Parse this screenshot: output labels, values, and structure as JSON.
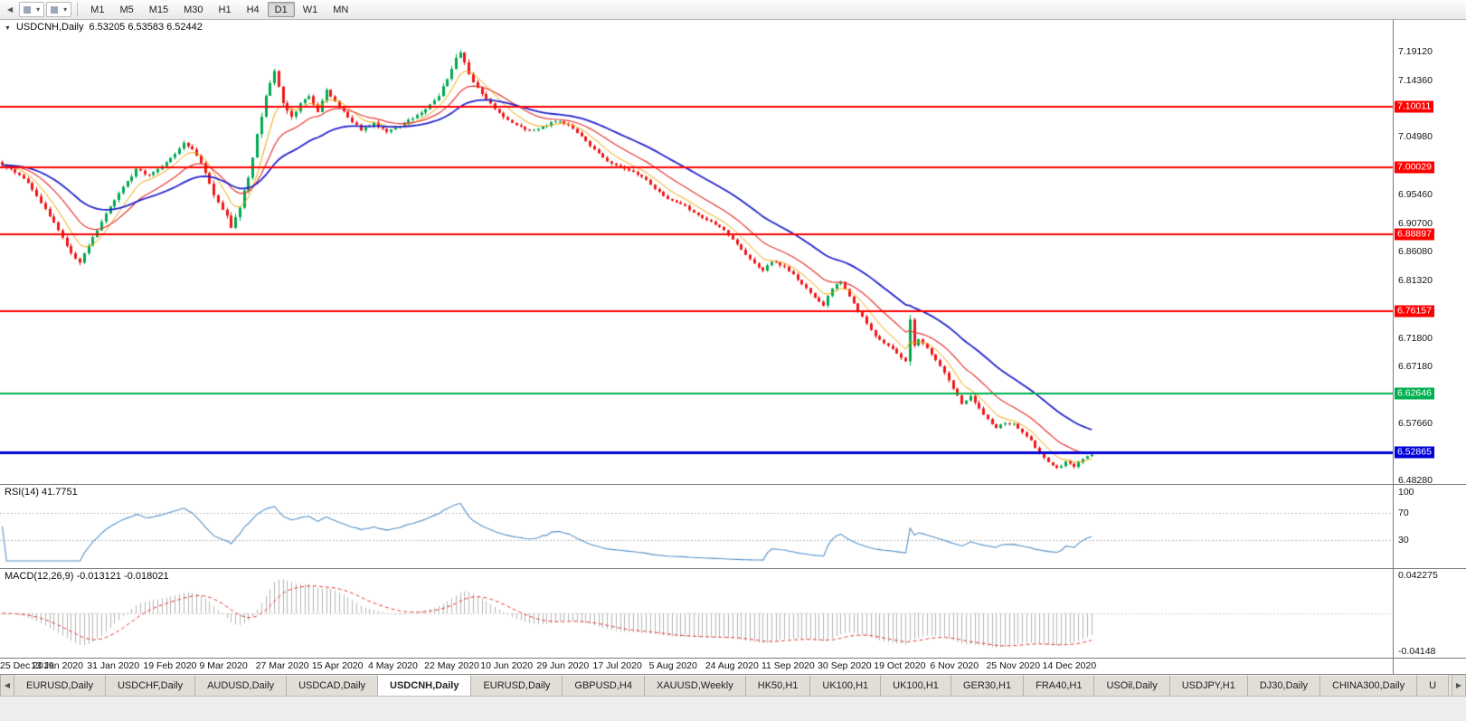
{
  "toolbar": {
    "overflow_left": "◀",
    "dropdowns": [
      "▾",
      "▾"
    ],
    "timeframes": [
      "M1",
      "M5",
      "M15",
      "M30",
      "H1",
      "H4",
      "D1",
      "W1",
      "MN"
    ],
    "active_timeframe": "D1"
  },
  "price_panel": {
    "symbol_marker": "▼",
    "symbol": "USDCNH,Daily",
    "quotes": "6.53205 6.53583 6.52442",
    "price_range": {
      "top": 7.243,
      "bottom": 6.477
    },
    "axis_labels": [
      {
        "text": "7.19120",
        "price": 7.1912
      },
      {
        "text": "7.14360",
        "price": 7.1436
      },
      {
        "text": "7.04980",
        "price": 7.0498
      },
      {
        "text": "6.95460",
        "price": 6.9546
      },
      {
        "text": "6.90700",
        "price": 6.907
      },
      {
        "text": "6.86080",
        "price": 6.8608
      },
      {
        "text": "6.81320",
        "price": 6.8132
      },
      {
        "text": "6.71800",
        "price": 6.718
      },
      {
        "text": "6.67180",
        "price": 6.6718
      },
      {
        "text": "6.57660",
        "price": 6.5766
      },
      {
        "text": "6.48280",
        "price": 6.4828
      }
    ],
    "line_labels": [
      {
        "text": "7.10011",
        "price": 7.10011,
        "color": "#ff0000"
      },
      {
        "text": "7.00029",
        "price": 7.00029,
        "color": "#ff0000"
      },
      {
        "text": "6.88897",
        "price": 6.88897,
        "color": "#ff0000"
      },
      {
        "text": "6.76157",
        "price": 6.76157,
        "color": "#ff0000"
      },
      {
        "text": "6.62646",
        "price": 6.62646,
        "color": "#00b050"
      },
      {
        "text": "6.52865",
        "price": 6.52865,
        "color": "#0000d8"
      }
    ],
    "h_lines": [
      {
        "price": 7.10011,
        "color": "#ff0000",
        "width": 2
      },
      {
        "price": 7.00029,
        "color": "#ff0000",
        "width": 2
      },
      {
        "price": 6.88897,
        "color": "#ff0000",
        "width": 2
      },
      {
        "price": 6.76157,
        "color": "#ff0000",
        "width": 2
      },
      {
        "price": 6.62646,
        "color": "#00b050",
        "width": 2
      },
      {
        "price": 6.52865,
        "color": "#0000d8",
        "width": 3
      }
    ]
  },
  "rsi_panel": {
    "label": "RSI(14) 41.7751",
    "value": 41.7751,
    "period": 14,
    "levels": [
      70,
      30
    ],
    "axis_labels": [
      {
        "text": "100",
        "value": 100
      },
      {
        "text": "70",
        "value": 70
      },
      {
        "text": "30",
        "value": 30
      }
    ],
    "line_color": "#5591c8"
  },
  "macd_panel": {
    "label": "MACD(12,26,9) -0.013121 -0.018021",
    "macd_value": -0.013121,
    "signal_value": -0.018021,
    "fast": 12,
    "slow": 26,
    "signal": 9,
    "axis_top": "0.042275",
    "axis_bottom": "-0.04148",
    "histogram_color": "#b4b4b4",
    "signal_color": "#e53935"
  },
  "date_axis": {
    "labels": [
      "25 Dec 2019",
      "13 Jan 2020",
      "31 Jan 2020",
      "19 Feb 2020",
      "9 Mar 2020",
      "27 Mar 2020",
      "15 Apr 2020",
      "4 May 2020",
      "22 May 2020",
      "10 Jun 2020",
      "29 Jun 2020",
      "17 Jul 2020",
      "5 Aug 2020",
      "24 Aug 2020",
      "11 Sep 2020",
      "30 Sep 2020",
      "19 Oct 2020",
      "6 Nov 2020",
      "25 Nov 2020",
      "14 Dec 2020"
    ],
    "candles_per_label": 13
  },
  "tabs": {
    "left_scroll": "◀",
    "right_scroll": "▶",
    "active_index": 4,
    "items": [
      "EURUSD,Daily",
      "USDCHF,Daily",
      "AUDUSD,Daily",
      "USDCAD,Daily",
      "USDCNH,Daily",
      "EURUSD,Daily",
      "GBPUSD,H4",
      "XAUUSD,Weekly",
      "HK50,H1",
      "UK100,H1",
      "UK100,H1",
      "GER30,H1",
      "FRA40,H1",
      "USOil,Daily",
      "USDJPY,H1",
      "DJ30,Daily",
      "CHINA300,Daily",
      "U"
    ]
  },
  "colors": {
    "up_candle": "#00a94f",
    "down_candle": "#f01616",
    "ma_fast": "#efa400",
    "ma_mid": "#e53935",
    "ma_slow": "#2323cc",
    "background": "#ffffff",
    "axis_text": "#111111"
  },
  "chart_data": {
    "type": "candlestick",
    "symbol": "USDCNH",
    "timeframe": "Daily",
    "title": "USDCNH,Daily",
    "x_range": [
      "25 Dec 2019",
      "14 Dec 2020"
    ],
    "y_range": [
      6.4828,
      7.1912
    ],
    "candle_count": 253,
    "last_quotes": [
      6.53205,
      6.53583,
      6.52442
    ],
    "horizontal_lines": [
      7.10011,
      7.00029,
      6.88897,
      6.76157,
      6.62646,
      6.52865
    ],
    "moving_average_periods": {
      "fast": 7,
      "mid": 16,
      "slow": 34
    },
    "indicators": {
      "rsi_14": 41.7751,
      "macd_12_26_9": [
        -0.013121,
        -0.018021
      ]
    },
    "note": "close_anchors = [candle_index, close_price, approx_daily_range_in_0.001_units]; intermediate candles interpolated between anchors",
    "close_anchors": [
      [
        0,
        7.004,
        8
      ],
      [
        3,
        6.992,
        8
      ],
      [
        6,
        6.973,
        9
      ],
      [
        9,
        6.942,
        10
      ],
      [
        12,
        6.908,
        11
      ],
      [
        15,
        6.87,
        11
      ],
      [
        17,
        6.849,
        10
      ],
      [
        18,
        6.843,
        9
      ],
      [
        20,
        6.872,
        9
      ],
      [
        23,
        6.91,
        9
      ],
      [
        26,
        6.946,
        9
      ],
      [
        29,
        6.976,
        9
      ],
      [
        31,
        6.996,
        9
      ],
      [
        34,
        6.986,
        8
      ],
      [
        37,
        7.002,
        8
      ],
      [
        40,
        7.022,
        8
      ],
      [
        42,
        7.042,
        9
      ],
      [
        44,
        7.03,
        9
      ],
      [
        46,
        7.008,
        10
      ],
      [
        48,
        6.972,
        11
      ],
      [
        50,
        6.94,
        12
      ],
      [
        52,
        6.918,
        12
      ],
      [
        53,
        6.902,
        12
      ],
      [
        55,
        6.935,
        13
      ],
      [
        57,
        6.985,
        14
      ],
      [
        59,
        7.052,
        15
      ],
      [
        61,
        7.118,
        15
      ],
      [
        63,
        7.16,
        13
      ],
      [
        65,
        7.108,
        12
      ],
      [
        67,
        7.082,
        11
      ],
      [
        69,
        7.105,
        10
      ],
      [
        71,
        7.118,
        9
      ],
      [
        73,
        7.092,
        9
      ],
      [
        75,
        7.128,
        10
      ],
      [
        77,
        7.108,
        9
      ],
      [
        80,
        7.082,
        8
      ],
      [
        83,
        7.062,
        8
      ],
      [
        86,
        7.072,
        8
      ],
      [
        89,
        7.058,
        8
      ],
      [
        92,
        7.068,
        8
      ],
      [
        95,
        7.082,
        8
      ],
      [
        98,
        7.096,
        8
      ],
      [
        101,
        7.118,
        9
      ],
      [
        103,
        7.146,
        11
      ],
      [
        105,
        7.178,
        13
      ],
      [
        106,
        7.19,
        12
      ],
      [
        108,
        7.152,
        11
      ],
      [
        110,
        7.13,
        10
      ],
      [
        113,
        7.105,
        9
      ],
      [
        116,
        7.082,
        8
      ],
      [
        119,
        7.068,
        8
      ],
      [
        122,
        7.06,
        7
      ],
      [
        125,
        7.066,
        7
      ],
      [
        128,
        7.076,
        7
      ],
      [
        131,
        7.07,
        7
      ],
      [
        134,
        7.052,
        7
      ],
      [
        137,
        7.028,
        7
      ],
      [
        140,
        7.01,
        7
      ],
      [
        143,
        7.0,
        7
      ],
      [
        146,
        6.992,
        7
      ],
      [
        149,
        6.978,
        7
      ],
      [
        152,
        6.958,
        7
      ],
      [
        155,
        6.944,
        7
      ],
      [
        158,
        6.935,
        7
      ],
      [
        161,
        6.92,
        7
      ],
      [
        164,
        6.91,
        7
      ],
      [
        167,
        6.896,
        7
      ],
      [
        170,
        6.872,
        8
      ],
      [
        173,
        6.848,
        8
      ],
      [
        176,
        6.83,
        8
      ],
      [
        178,
        6.844,
        8
      ],
      [
        181,
        6.836,
        7
      ],
      [
        184,
        6.815,
        7
      ],
      [
        187,
        6.792,
        7
      ],
      [
        190,
        6.772,
        7
      ],
      [
        192,
        6.8,
        8
      ],
      [
        194,
        6.812,
        8
      ],
      [
        196,
        6.786,
        8
      ],
      [
        198,
        6.762,
        8
      ],
      [
        200,
        6.742,
        8
      ],
      [
        202,
        6.722,
        8
      ],
      [
        205,
        6.705,
        8
      ],
      [
        207,
        6.692,
        8
      ],
      [
        209,
        6.68,
        8
      ],
      [
        210,
        6.75,
        18
      ],
      [
        211,
        6.705,
        12
      ],
      [
        212,
        6.716,
        9
      ],
      [
        214,
        6.7,
        8
      ],
      [
        216,
        6.68,
        8
      ],
      [
        218,
        6.662,
        8
      ],
      [
        220,
        6.635,
        9
      ],
      [
        222,
        6.608,
        9
      ],
      [
        224,
        6.622,
        9
      ],
      [
        226,
        6.602,
        8
      ],
      [
        228,
        6.583,
        7
      ],
      [
        230,
        6.57,
        7
      ],
      [
        232,
        6.578,
        7
      ],
      [
        234,
        6.576,
        7
      ],
      [
        236,
        6.562,
        7
      ],
      [
        238,
        6.548,
        7
      ],
      [
        240,
        6.528,
        7
      ],
      [
        242,
        6.512,
        7
      ],
      [
        244,
        6.503,
        7
      ],
      [
        246,
        6.513,
        7
      ],
      [
        248,
        6.506,
        7
      ],
      [
        250,
        6.52,
        7
      ],
      [
        252,
        6.5244,
        6
      ]
    ]
  }
}
